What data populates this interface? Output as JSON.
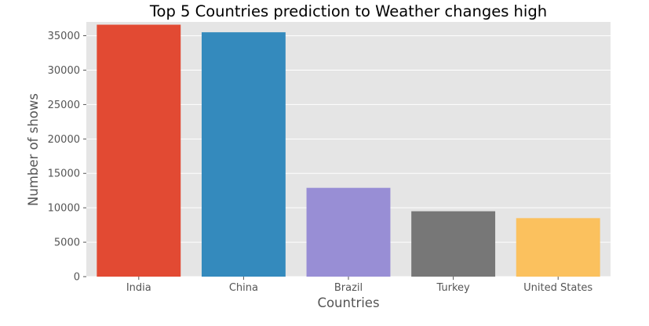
{
  "chart_data": {
    "type": "bar",
    "title": "Top 5 Countries prediction to Weather changes high",
    "xlabel": "Countries",
    "ylabel": "Number of shows",
    "categories": [
      "India",
      "China",
      "Brazil",
      "Turkey",
      "United States"
    ],
    "values": [
      36600,
      35500,
      12900,
      9500,
      8500
    ],
    "ylim": [
      0,
      37000
    ],
    "yticks": [
      0,
      5000,
      10000,
      15000,
      20000,
      25000,
      30000,
      35000
    ],
    "ytick_labels": [
      "0",
      "5000",
      "10000",
      "15000",
      "20000",
      "25000",
      "30000",
      "35000"
    ],
    "grid": true,
    "legend": "none",
    "colors": [
      "#E24A33",
      "#348ABD",
      "#988ED5",
      "#777777",
      "#FBC15E"
    ],
    "background_color": "#E5E5E5",
    "grid_color": "#FFFFFF"
  }
}
